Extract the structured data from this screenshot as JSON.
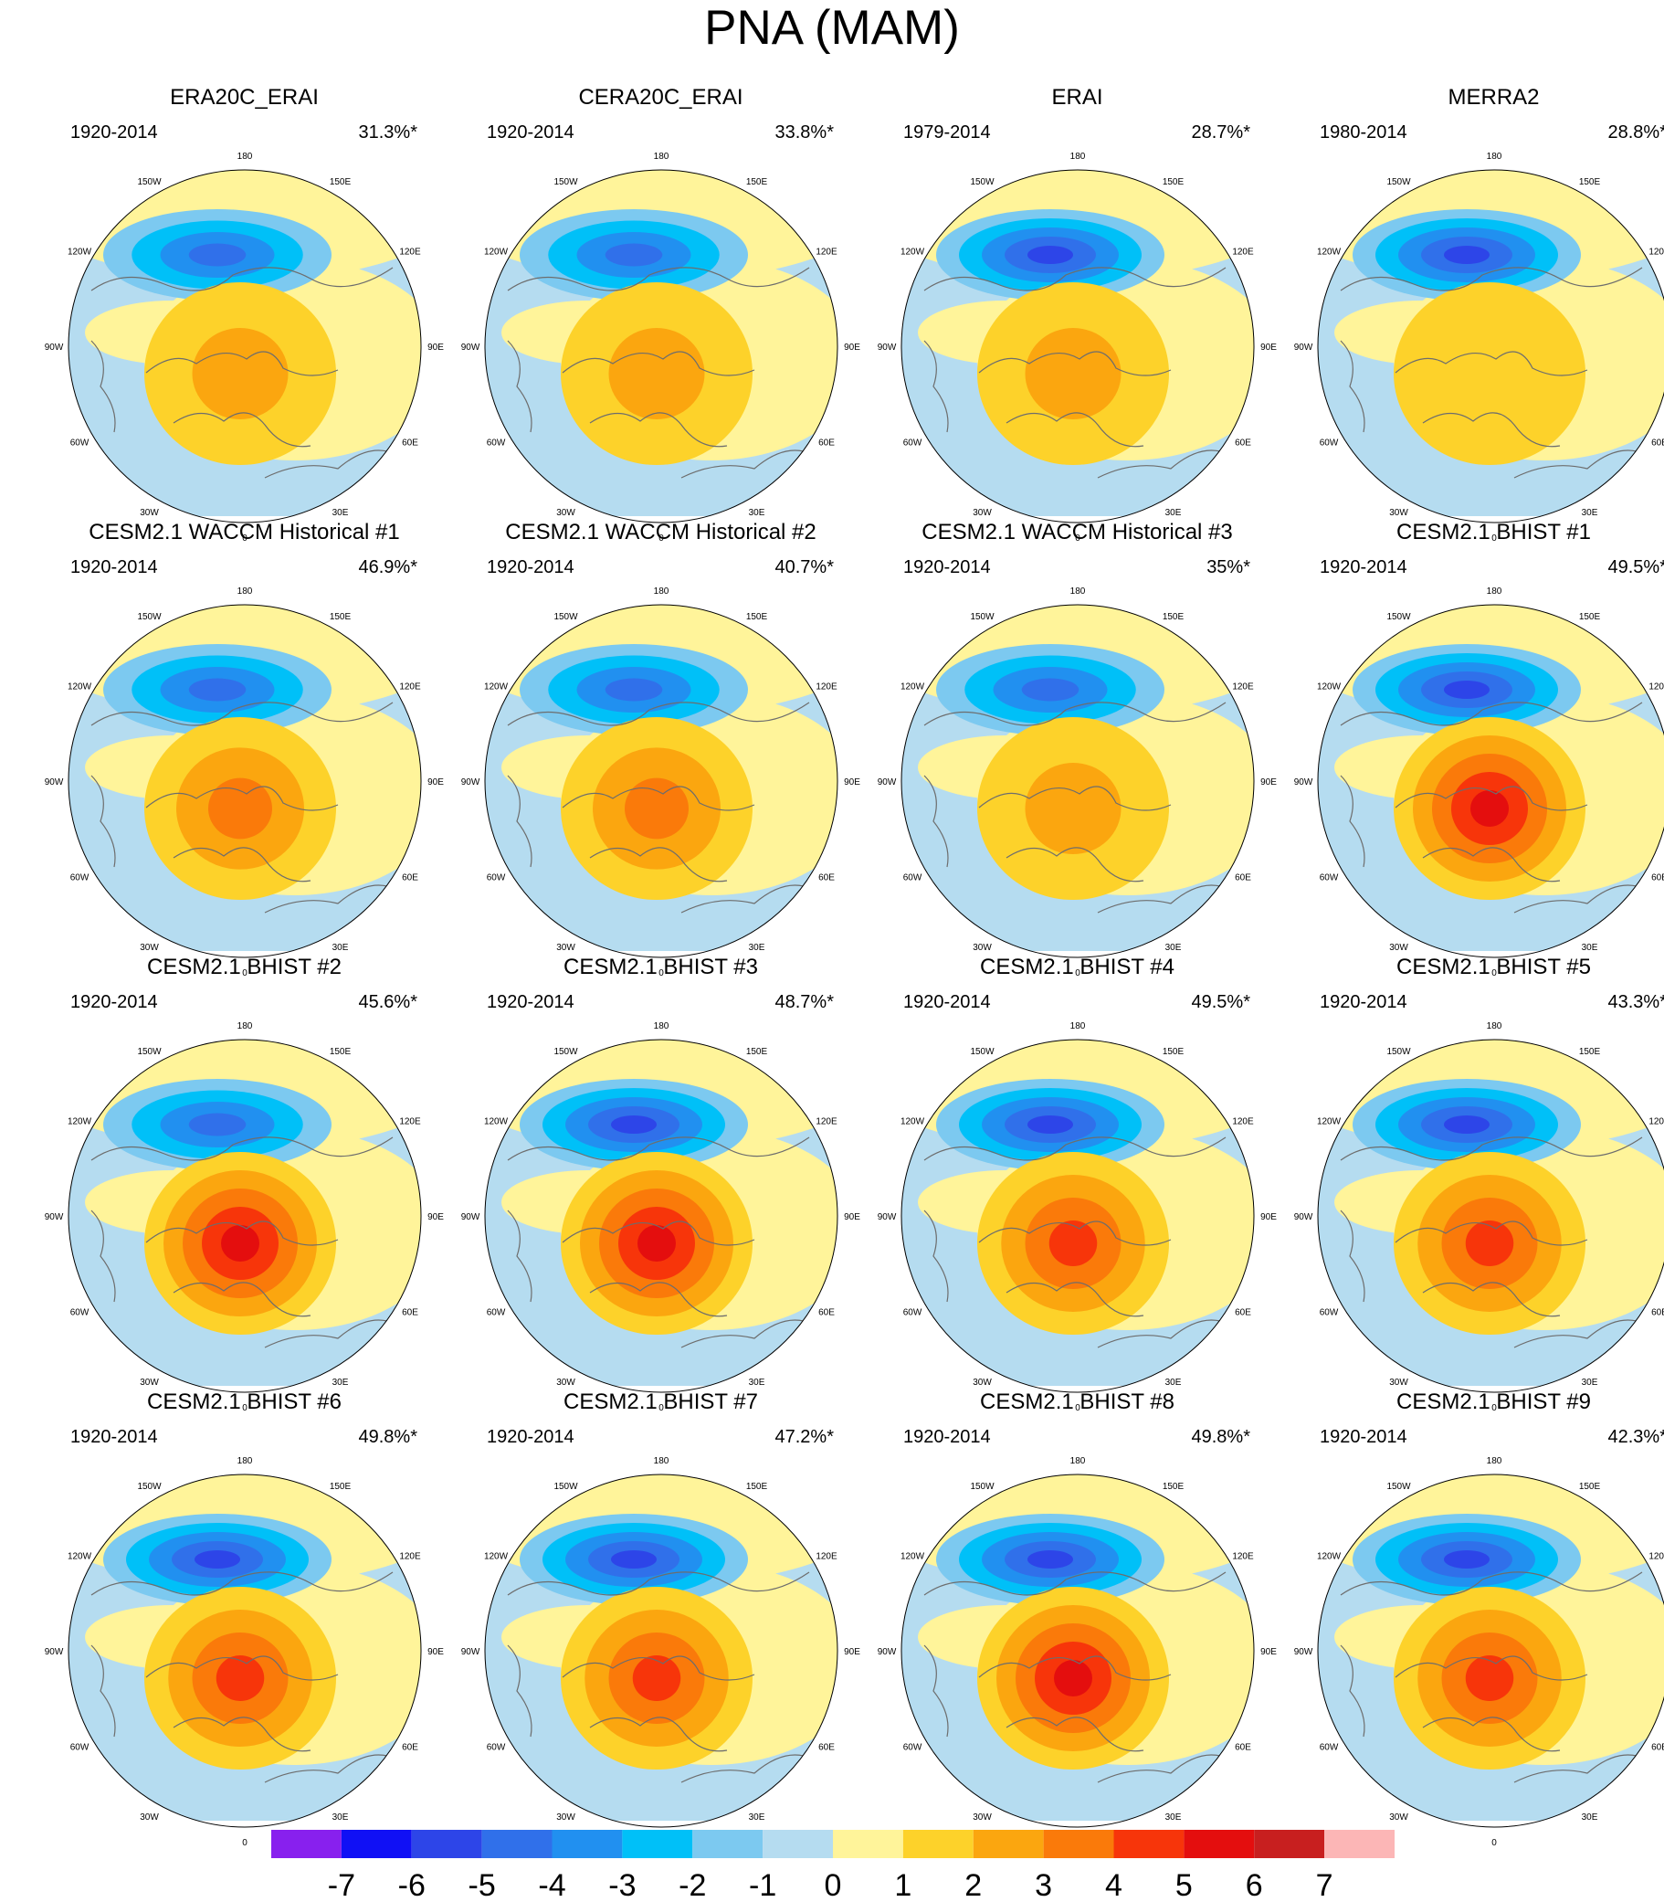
{
  "chart_data": {
    "type": "contour-map-grid",
    "title": "PNA (MAM)",
    "projection": "north polar stereographic",
    "longitude_labels": [
      "180",
      "150E",
      "120E",
      "90E",
      "60E",
      "30E",
      "0",
      "30W",
      "60W",
      "90W",
      "120W",
      "150W"
    ],
    "panels": [
      {
        "title": "ERA20C_ERAI",
        "period": "1920-2014",
        "variance_explained": "31.3%*",
        "min_level": -4,
        "max_level": 2
      },
      {
        "title": "CERA20C_ERAI",
        "period": "1920-2014",
        "variance_explained": "33.8%*",
        "min_level": -4,
        "max_level": 2
      },
      {
        "title": "ERAI",
        "period": "1979-2014",
        "variance_explained": "28.7%*",
        "min_level": -5,
        "max_level": 2
      },
      {
        "title": "MERRA2",
        "period": "1980-2014",
        "variance_explained": "28.8%*",
        "min_level": -5,
        "max_level": 1
      },
      {
        "title": "CESM2.1 WACCM Historical #1",
        "period": "1920-2014",
        "variance_explained": "46.9%*",
        "min_level": -4,
        "max_level": 3
      },
      {
        "title": "CESM2.1 WACCM Historical #2",
        "period": "1920-2014",
        "variance_explained": "40.7%*",
        "min_level": -4,
        "max_level": 3
      },
      {
        "title": "CESM2.1 WACCM Historical #3",
        "period": "1920-2014",
        "variance_explained": "35%*",
        "min_level": -4,
        "max_level": 2
      },
      {
        "title": "CESM2.1 BHIST #1",
        "period": "1920-2014",
        "variance_explained": "49.5%*",
        "min_level": -5,
        "max_level": 5
      },
      {
        "title": "CESM2.1 BHIST #2",
        "period": "1920-2014",
        "variance_explained": "45.6%*",
        "min_level": -4,
        "max_level": 5
      },
      {
        "title": "CESM2.1 BHIST #3",
        "period": "1920-2014",
        "variance_explained": "48.7%*",
        "min_level": -5,
        "max_level": 5
      },
      {
        "title": "CESM2.1 BHIST #4",
        "period": "1920-2014",
        "variance_explained": "49.5%*",
        "min_level": -5,
        "max_level": 4
      },
      {
        "title": "CESM2.1 BHIST #5",
        "period": "1920-2014",
        "variance_explained": "43.3%*",
        "min_level": -5,
        "max_level": 4
      },
      {
        "title": "CESM2.1 BHIST #6",
        "period": "1920-2014",
        "variance_explained": "49.8%*",
        "min_level": -5,
        "max_level": 4
      },
      {
        "title": "CESM2.1 BHIST #7",
        "period": "1920-2014",
        "variance_explained": "47.2%*",
        "min_level": -5,
        "max_level": 4
      },
      {
        "title": "CESM2.1 BHIST #8",
        "period": "1920-2014",
        "variance_explained": "49.8%*",
        "min_level": -5,
        "max_level": 5
      },
      {
        "title": "CESM2.1 BHIST #9",
        "period": "1920-2014",
        "variance_explained": "42.3%*",
        "min_level": -5,
        "max_level": 4
      }
    ],
    "colorbar": {
      "labels": [
        "-7",
        "-6",
        "-5",
        "-4",
        "-3",
        "-2",
        "-1",
        "0",
        "1",
        "2",
        "3",
        "4",
        "5",
        "6",
        "7"
      ],
      "colors": [
        "#8820ee",
        "#1010f5",
        "#2d45e8",
        "#3070ea",
        "#2190f0",
        "#00c0f8",
        "#7cc9f0",
        "#b5dcf0",
        "#fff49a",
        "#fdd22a",
        "#fba60f",
        "#fa7a0a",
        "#f7350a",
        "#e40e0e",
        "#c81f1f",
        "#fcb6b6"
      ]
    }
  }
}
